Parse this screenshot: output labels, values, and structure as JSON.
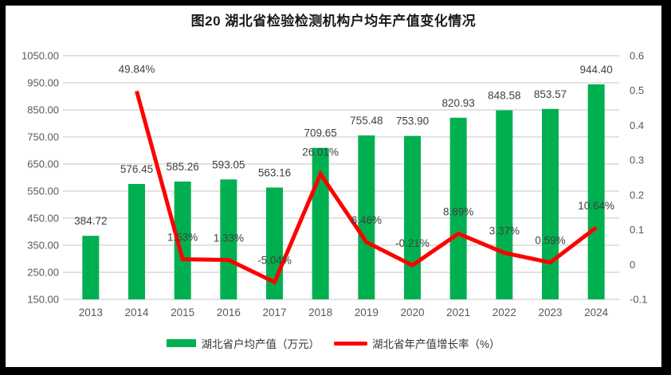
{
  "title": "图20 湖北省检验检测机构户均年产值变化情况",
  "chart_data": {
    "type": "combo",
    "title": "图20 湖北省检验检测机构户均年产值变化情况",
    "categories": [
      "2013",
      "2014",
      "2015",
      "2016",
      "2017",
      "2018",
      "2019",
      "2020",
      "2021",
      "2022",
      "2023",
      "2024"
    ],
    "series": [
      {
        "name": "湖北省户均产值（万元）",
        "type": "bar",
        "axis": "left",
        "color": "#00B050",
        "values": [
          384.72,
          576.45,
          585.26,
          593.05,
          563.16,
          709.65,
          755.48,
          753.9,
          820.93,
          848.58,
          853.57,
          944.4
        ],
        "labels": [
          "384.72",
          "576.45",
          "585.26",
          "593.05",
          "563.16",
          "709.65",
          "755.48",
          "753.90",
          "820.93",
          "848.58",
          "853.57",
          "944.40"
        ]
      },
      {
        "name": "湖北省年产值增长率（%）",
        "type": "line",
        "axis": "right",
        "color": "#FF0000",
        "values": [
          null,
          0.4984,
          0.0153,
          0.0133,
          -0.0504,
          0.2601,
          0.0646,
          -0.0021,
          0.0889,
          0.0337,
          0.0059,
          0.1064
        ],
        "labels": [
          null,
          "49.84%",
          "1.53%",
          "1.33%",
          "-5.04%",
          "26.01%",
          "6.46%",
          "-0.21%",
          "8.89%",
          "3.37%",
          "0.59%",
          "10.64%"
        ]
      }
    ],
    "left_axis": {
      "min": 150,
      "max": 1050,
      "step": 100,
      "tick_labels": [
        "1050.00",
        "950.00",
        "850.00",
        "750.00",
        "650.00",
        "550.00",
        "450.00",
        "350.00",
        "250.00",
        "150.00"
      ]
    },
    "right_axis": {
      "min": -0.1,
      "max": 0.6,
      "step": 0.1,
      "tick_labels": [
        "0.6",
        "0.5",
        "0.4",
        "0.3",
        "0.2",
        "0.1",
        "0",
        "-0.1"
      ]
    },
    "grid": true,
    "legend_position": "bottom",
    "colors": {
      "grid": "#D9D9D9",
      "axis_text": "#595959",
      "data_label": "#404040",
      "title_text": "#1A1A1A",
      "frame": "#000000",
      "background": "#FFFFFF"
    }
  }
}
